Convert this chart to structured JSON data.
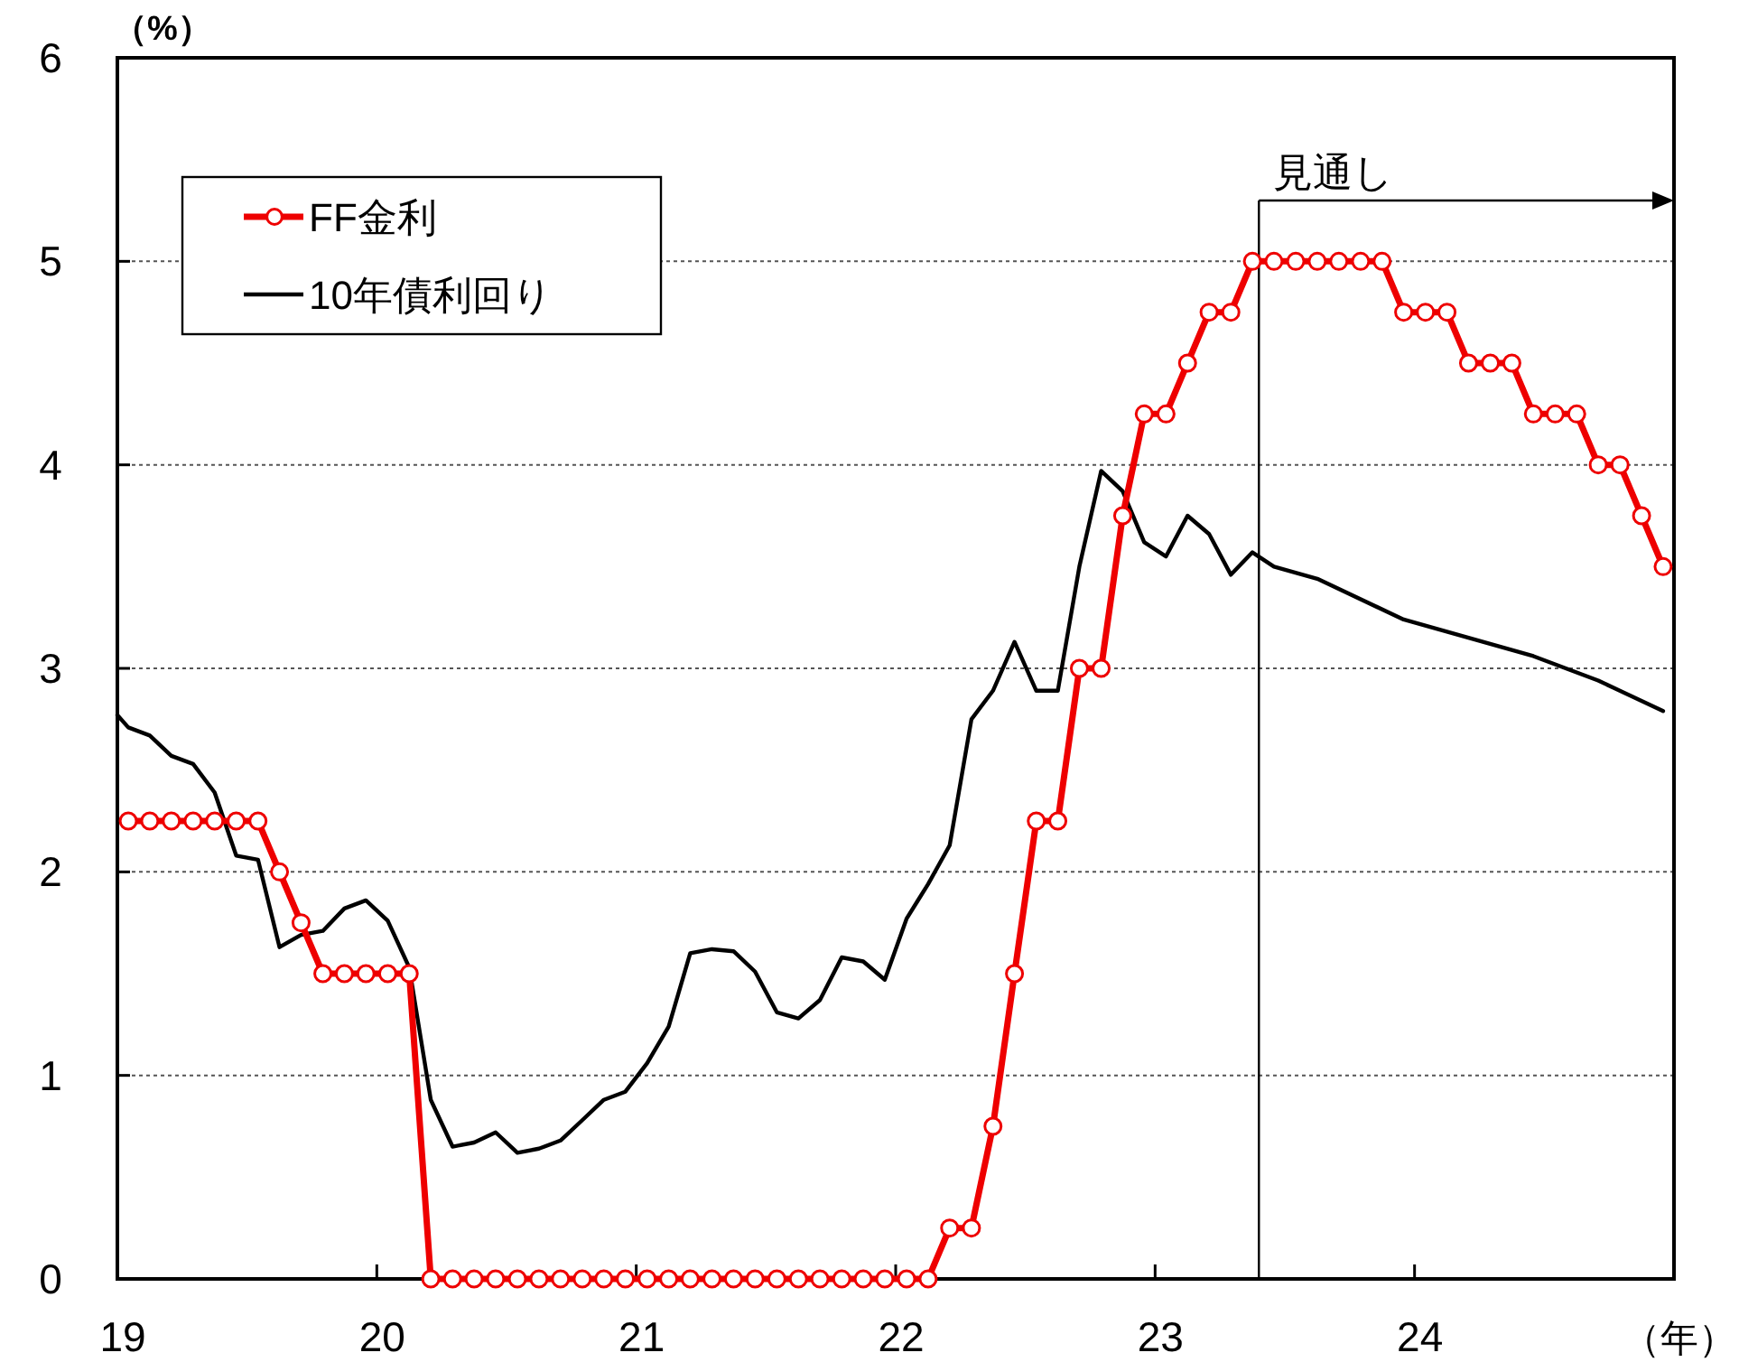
{
  "chart_data": {
    "type": "line",
    "ylabel": "（%）",
    "xlabel": "（年）",
    "xlim": [
      19,
      25
    ],
    "xticks": [
      19,
      20,
      21,
      22,
      23,
      24
    ],
    "ylim": [
      0,
      6
    ],
    "yticks": [
      0,
      1,
      2,
      3,
      4,
      5,
      6
    ],
    "grid": "y",
    "legend": "top left",
    "ref_lines": [
      {
        "axis": "x",
        "value": 23.4,
        "label": "見通し",
        "color": "#000000"
      }
    ],
    "series": [
      {
        "name": "FF金利",
        "color": "#ee0000",
        "marker": "circle",
        "x": [
          19.042,
          19.125,
          19.208,
          19.292,
          19.375,
          19.458,
          19.542,
          19.625,
          19.708,
          19.792,
          19.875,
          19.958,
          20.042,
          20.125,
          20.208,
          20.292,
          20.375,
          20.458,
          20.542,
          20.625,
          20.708,
          20.792,
          20.875,
          20.958,
          21.042,
          21.125,
          21.208,
          21.292,
          21.375,
          21.458,
          21.542,
          21.625,
          21.708,
          21.792,
          21.875,
          21.958,
          22.042,
          22.125,
          22.208,
          22.292,
          22.375,
          22.458,
          22.542,
          22.625,
          22.708,
          22.792,
          22.875,
          22.958,
          23.042,
          23.125,
          23.208,
          23.292,
          23.375,
          23.458,
          23.542,
          23.625,
          23.708,
          23.792,
          23.875,
          23.958,
          24.042,
          24.125,
          24.208,
          24.292,
          24.375,
          24.458,
          24.542,
          24.625,
          24.708,
          24.792,
          24.875,
          24.958
        ],
        "values": [
          2.25,
          2.25,
          2.25,
          2.25,
          2.25,
          2.25,
          2.25,
          2.0,
          1.75,
          1.5,
          1.5,
          1.5,
          1.5,
          1.5,
          0,
          0,
          0,
          0,
          0,
          0,
          0,
          0,
          0,
          0,
          0,
          0,
          0,
          0,
          0,
          0,
          0,
          0,
          0,
          0,
          0,
          0,
          0,
          0,
          0.25,
          0.25,
          0.75,
          1.5,
          2.25,
          2.25,
          3.0,
          3.0,
          3.75,
          4.25,
          4.25,
          4.5,
          4.75,
          4.75,
          5.0,
          5.0,
          5.0,
          5.0,
          5.0,
          5.0,
          5.0,
          4.75,
          4.75,
          4.75,
          4.5,
          4.5,
          4.5,
          4.25,
          4.25,
          4.25,
          4.0,
          4.0,
          3.75,
          3.5
        ]
      },
      {
        "name": "10年債利回り",
        "color": "#000000",
        "marker": "none",
        "x": [
          19.0,
          19.042,
          19.125,
          19.208,
          19.292,
          19.375,
          19.458,
          19.542,
          19.625,
          19.708,
          19.792,
          19.875,
          19.958,
          20.042,
          20.125,
          20.208,
          20.292,
          20.375,
          20.458,
          20.542,
          20.625,
          20.708,
          20.792,
          20.875,
          20.958,
          21.042,
          21.125,
          21.208,
          21.292,
          21.375,
          21.458,
          21.542,
          21.625,
          21.708,
          21.792,
          21.875,
          21.958,
          22.042,
          22.125,
          22.208,
          22.292,
          22.375,
          22.458,
          22.542,
          22.625,
          22.708,
          22.792,
          22.875,
          22.958,
          23.042,
          23.125,
          23.208,
          23.292,
          23.375,
          23.458,
          23.625,
          23.958,
          24.458,
          24.708,
          24.958
        ],
        "values": [
          2.77,
          2.71,
          2.67,
          2.57,
          2.53,
          2.39,
          2.08,
          2.06,
          1.63,
          1.69,
          1.71,
          1.82,
          1.86,
          1.76,
          1.53,
          0.88,
          0.65,
          0.67,
          0.72,
          0.62,
          0.64,
          0.68,
          0.78,
          0.88,
          0.92,
          1.06,
          1.24,
          1.6,
          1.62,
          1.61,
          1.51,
          1.31,
          1.28,
          1.37,
          1.58,
          1.56,
          1.47,
          1.77,
          1.94,
          2.13,
          2.75,
          2.89,
          3.13,
          2.89,
          2.89,
          3.5,
          3.97,
          3.87,
          3.62,
          3.55,
          3.75,
          3.66,
          3.46,
          3.57,
          3.5,
          3.44,
          3.24,
          3.06,
          2.94,
          2.79
        ]
      }
    ]
  }
}
